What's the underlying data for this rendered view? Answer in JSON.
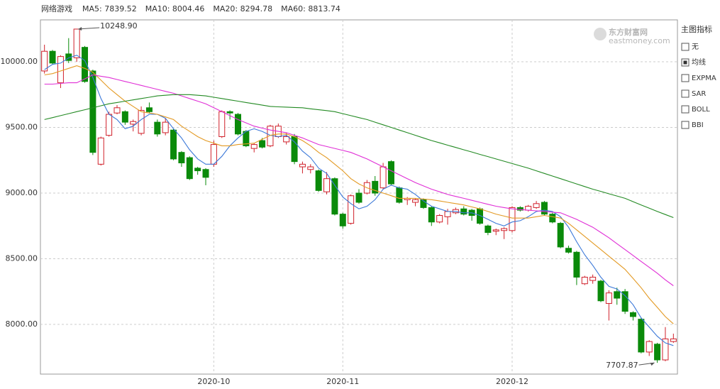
{
  "chart_data": {
    "type": "candlestick",
    "title": "网络游戏",
    "categories": [
      null,
      null,
      null,
      null,
      null,
      null,
      null,
      null,
      null,
      null,
      null,
      null,
      null,
      null,
      null,
      null,
      null,
      null,
      null,
      null,
      null,
      "2020-10",
      null,
      null,
      null,
      null,
      null,
      null,
      null,
      null,
      null,
      null,
      null,
      null,
      null,
      null,
      null,
      "2020-11",
      null,
      null,
      null,
      null,
      null,
      null,
      null,
      null,
      null,
      null,
      null,
      null,
      null,
      null,
      null,
      null,
      null,
      null,
      null,
      null,
      "2020-12",
      null,
      null,
      null,
      null,
      null,
      null,
      null,
      null,
      null,
      null,
      null,
      null,
      null,
      null,
      null,
      null,
      null,
      null,
      null,
      null
    ],
    "open": [
      9930,
      10080,
      9840,
      10060,
      10030,
      10110,
      9930,
      9220,
      9440,
      9610,
      9620,
      9525,
      9455,
      9650,
      9540,
      9460,
      9480,
      9310,
      9270,
      9190,
      9180,
      9220,
      9430,
      9620,
      9600,
      9470,
      9340,
      9400,
      9360,
      9430,
      9390,
      9430,
      9200,
      9180,
      9170,
      9010,
      9110,
      8840,
      8770,
      9000,
      9000,
      9090,
      9040,
      9240,
      9040,
      8950,
      8930,
      8950,
      8890,
      8780,
      8820,
      8850,
      8880,
      8870,
      8880,
      8750,
      8710,
      8715,
      8715,
      8890,
      8870,
      8890,
      8930,
      8840,
      8770,
      8580,
      8550,
      8310,
      8335,
      8330,
      8160,
      8250,
      8250,
      8090,
      8040,
      7790,
      7850,
      7730,
      7870
    ],
    "close": [
      10080,
      9990,
      10040,
      10010,
      10248.9,
      9850,
      9310,
      9420,
      9600,
      9650,
      9540,
      9545,
      9630,
      9620,
      9450,
      9540,
      9260,
      9230,
      9110,
      9170,
      9120,
      9370,
      9620,
      9610,
      9450,
      9360,
      9370,
      9350,
      9510,
      9510,
      9430,
      9240,
      9220,
      9200,
      9020,
      9110,
      8840,
      8750,
      8980,
      8930,
      9080,
      9000,
      9200,
      9070,
      8930,
      8960,
      8950,
      8890,
      8780,
      8830,
      8860,
      8875,
      8840,
      8830,
      8770,
      8700,
      8720,
      8730,
      8890,
      8870,
      8900,
      8920,
      8840,
      8780,
      8590,
      8550,
      8360,
      8360,
      8360,
      8180,
      8240,
      8200,
      8100,
      8060,
      7790,
      7870,
      7730,
      7890,
      7890
    ],
    "high": [
      10130,
      10090,
      10050,
      10180,
      10248.9,
      10120,
      9940,
      9430,
      9620,
      9670,
      9630,
      9560,
      9660,
      9690,
      9560,
      9570,
      9490,
      9320,
      9280,
      9200,
      9190,
      9400,
      9630,
      9630,
      9610,
      9480,
      9380,
      9420,
      9520,
      9530,
      9460,
      9450,
      9240,
      9220,
      9180,
      9160,
      9120,
      8850,
      8990,
      9030,
      9100,
      9130,
      9230,
      9250,
      9050,
      8970,
      8960,
      8960,
      8900,
      8840,
      8880,
      8890,
      8900,
      8880,
      8890,
      8760,
      8730,
      8740,
      8900,
      8900,
      8910,
      8940,
      8940,
      8850,
      8780,
      8600,
      8560,
      8370,
      8380,
      8340,
      8260,
      8280,
      8270,
      8100,
      8050,
      7880,
      7860,
      7980,
      7930
    ],
    "low": [
      9910,
      9980,
      9800,
      9990,
      10000,
      9840,
      9290,
      9210,
      9430,
      9600,
      9520,
      9470,
      9440,
      9610,
      9430,
      9440,
      9250,
      9200,
      9100,
      9140,
      9060,
      9200,
      9420,
      9560,
      9440,
      9350,
      9310,
      9340,
      9350,
      9420,
      9370,
      9220,
      9150,
      9150,
      9010,
      8990,
      8830,
      8730,
      8760,
      8920,
      8990,
      8980,
      9030,
      9060,
      8920,
      8910,
      8900,
      8880,
      8750,
      8770,
      8760,
      8840,
      8830,
      8790,
      8760,
      8680,
      8680,
      8650,
      8700,
      8860,
      8860,
      8880,
      8830,
      8770,
      8580,
      8540,
      8300,
      8300,
      8310,
      8170,
      8030,
      8150,
      8080,
      8030,
      7780,
      7760,
      7707.87,
      7720,
      7860
    ],
    "up_color": "#d0202a",
    "down_color": "#0a8a0a",
    "ma_series": [
      {
        "name": "MA5: 7839.52",
        "color": "#3b78d8",
        "values": [
          9940,
          9980,
          9990,
          10030,
          10050,
          10010,
          9880,
          9720,
          9600,
          9560,
          9490,
          9510,
          9560,
          9600,
          9600,
          9570,
          9490,
          9420,
          9330,
          9260,
          9220,
          9220,
          9280,
          9360,
          9420,
          9470,
          9490,
          9470,
          9440,
          9430,
          9440,
          9390,
          9320,
          9270,
          9190,
          9150,
          9060,
          8970,
          8920,
          8880,
          8900,
          8950,
          9030,
          9060,
          9040,
          9030,
          8990,
          8940,
          8900,
          8880,
          8860,
          8860,
          8850,
          8850,
          8830,
          8800,
          8770,
          8750,
          8780,
          8790,
          8820,
          8860,
          8870,
          8860,
          8820,
          8740,
          8630,
          8530,
          8450,
          8360,
          8290,
          8270,
          8220,
          8150,
          8050,
          7980,
          7910,
          7860,
          7839.52
        ]
      },
      {
        "name": "MA10: 8004.46",
        "color": "#e39a24",
        "values": [
          9900,
          9910,
          9930,
          9950,
          9970,
          9950,
          9920,
          9860,
          9800,
          9750,
          9700,
          9660,
          9620,
          9610,
          9600,
          9580,
          9560,
          9510,
          9470,
          9430,
          9400,
          9380,
          9360,
          9360,
          9370,
          9375,
          9380,
          9410,
          9440,
          9450,
          9450,
          9430,
          9400,
          9360,
          9310,
          9270,
          9220,
          9170,
          9110,
          9070,
          9040,
          9020,
          9000,
          8980,
          8960,
          8960,
          8960,
          8955,
          8950,
          8940,
          8930,
          8920,
          8910,
          8895,
          8880,
          8860,
          8840,
          8825,
          8810,
          8810,
          8810,
          8820,
          8830,
          8820,
          8810,
          8770,
          8720,
          8670,
          8620,
          8570,
          8520,
          8470,
          8420,
          8350,
          8280,
          8200,
          8130,
          8060,
          8004.46
        ]
      },
      {
        "name": "MA20: 8294.78",
        "color": "#e02fd6",
        "values": [
          9830,
          9830,
          9835,
          9840,
          9840,
          9870,
          9900,
          9890,
          9880,
          9865,
          9850,
          9835,
          9820,
          9805,
          9790,
          9775,
          9760,
          9740,
          9720,
          9700,
          9680,
          9650,
          9620,
          9590,
          9560,
          9535,
          9510,
          9495,
          9480,
          9470,
          9460,
          9440,
          9420,
          9395,
          9370,
          9355,
          9340,
          9325,
          9310,
          9285,
          9260,
          9230,
          9200,
          9170,
          9140,
          9110,
          9080,
          9055,
          9030,
          9010,
          8990,
          8975,
          8960,
          8945,
          8930,
          8915,
          8900,
          8890,
          8880,
          8875,
          8870,
          8865,
          8860,
          8855,
          8850,
          8825,
          8800,
          8770,
          8740,
          8700,
          8660,
          8615,
          8570,
          8525,
          8480,
          8435,
          8390,
          8340,
          8294.78
        ]
      },
      {
        "name": "MA60: 8813.74",
        "color": "#238a23",
        "values": [
          9560,
          9575,
          9590,
          9605,
          9620,
          9635,
          9650,
          9665,
          9680,
          9690,
          9700,
          9710,
          9720,
          9730,
          9740,
          9745,
          9750,
          9750,
          9750,
          9745,
          9740,
          9730,
          9720,
          9710,
          9700,
          9690,
          9680,
          9670,
          9660,
          9657,
          9655,
          9652,
          9650,
          9642,
          9635,
          9628,
          9620,
          9605,
          9590,
          9575,
          9560,
          9540,
          9520,
          9500,
          9480,
          9460,
          9440,
          9420,
          9400,
          9383,
          9365,
          9348,
          9330,
          9313,
          9295,
          9278,
          9260,
          9243,
          9225,
          9208,
          9190,
          9170,
          9150,
          9130,
          9110,
          9090,
          9070,
          9050,
          9030,
          9013,
          8995,
          8978,
          8960,
          8935,
          8910,
          8885,
          8860,
          8837,
          8813.74
        ]
      }
    ],
    "ylim": [
      7622,
      10319
    ],
    "yticks": [
      {
        "value": 8000,
        "label": "8000.00"
      },
      {
        "value": 8500,
        "label": "8500.00"
      },
      {
        "value": 9000,
        "label": "9000.00"
      },
      {
        "value": 9500,
        "label": "9500.00"
      },
      {
        "value": 10000,
        "label": "10000.00"
      }
    ],
    "grid": true,
    "annotations": [
      {
        "value": 10248.9,
        "label": "10248.90"
      },
      {
        "value": 7707.87,
        "label": "7707.87"
      }
    ]
  },
  "indicator_panel": {
    "title": "主图指标",
    "options": [
      "无",
      "均线",
      "EXPMA",
      "SAR",
      "BOLL",
      "BBI"
    ],
    "selected": 1
  },
  "watermark": {
    "name": "东方财富网",
    "url": "eastmoney.com"
  }
}
